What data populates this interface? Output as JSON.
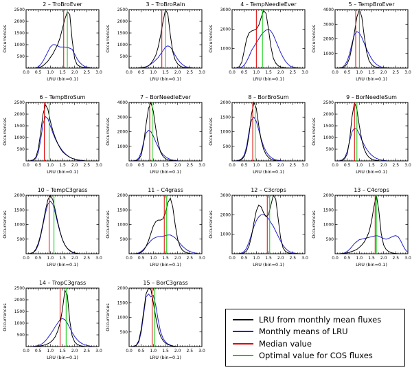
{
  "figure": {
    "background": "#ffffff"
  },
  "colors": {
    "frame": "#000000",
    "black_series": "#000000",
    "blue_series": "#2222cc",
    "median_line": "#dd0000",
    "optimal_line": "#00cc00"
  },
  "axis": {
    "xlabel": "LRU (bin=0.1)",
    "ylabel": "Occurrences",
    "xlim": [
      0.0,
      3.0
    ],
    "xticks": [
      0.0,
      0.5,
      1.0,
      1.5,
      2.0,
      2.5,
      3.0
    ]
  },
  "legend": {
    "items": [
      {
        "label": "LRU from monthly mean fluxes",
        "color": "#000000"
      },
      {
        "label": "Monthly means of LRU",
        "color": "#2222cc"
      },
      {
        "label": "Median value",
        "color": "#dd0000"
      },
      {
        "label": "Optimal value for COS fluxes",
        "color": "#00cc00"
      }
    ]
  },
  "chart_data": {
    "type": "line",
    "x_start": 0.0,
    "x_step": 0.1,
    "xlabel": "LRU (bin=0.1)",
    "ylabel": "Occurrences",
    "panels": [
      {
        "title": "2 – TroBroEver",
        "ylim": 2500,
        "yticks": [
          500,
          1000,
          1500,
          2000,
          2500
        ],
        "median_x": 1.55,
        "optimal_x": 1.7,
        "black": [
          0,
          0,
          0,
          0,
          0,
          10,
          50,
          100,
          200,
          300,
          450,
          600,
          800,
          1000,
          1300,
          1700,
          2100,
          2400,
          2300,
          1200,
          400,
          150,
          80,
          40,
          20,
          10,
          0,
          0,
          0,
          0,
          0
        ],
        "blue": [
          0,
          0,
          0,
          0,
          10,
          50,
          150,
          300,
          500,
          700,
          900,
          1000,
          1000,
          950,
          900,
          900,
          900,
          880,
          850,
          800,
          600,
          400,
          250,
          150,
          80,
          40,
          20,
          0,
          0,
          0,
          0
        ]
      },
      {
        "title": "3 – TroBroRaIn",
        "ylim": 2500,
        "yticks": [
          500,
          1000,
          1500,
          2000,
          2500
        ],
        "median_x": 1.35,
        "optimal_x": 1.5,
        "black": [
          0,
          0,
          0,
          0,
          0,
          0,
          20,
          50,
          100,
          200,
          350,
          550,
          900,
          1400,
          2000,
          2500,
          2300,
          1400,
          700,
          350,
          180,
          90,
          40,
          20,
          10,
          0,
          0,
          0,
          0,
          0,
          0
        ],
        "blue": [
          0,
          0,
          0,
          0,
          10,
          20,
          30,
          60,
          100,
          170,
          250,
          350,
          450,
          600,
          750,
          900,
          950,
          900,
          750,
          550,
          380,
          250,
          150,
          80,
          40,
          20,
          10,
          0,
          0,
          0,
          0
        ]
      },
      {
        "title": "4 – TempNeedleEver",
        "ylim": 3000,
        "yticks": [
          1000,
          2000,
          3000
        ],
        "median_x": 1.0,
        "optimal_x": 1.25,
        "black": [
          0,
          0,
          10,
          80,
          300,
          900,
          1500,
          1800,
          1900,
          1950,
          2000,
          2200,
          2600,
          2950,
          2800,
          2000,
          1100,
          500,
          250,
          120,
          60,
          30,
          10,
          0,
          0,
          0,
          0,
          0,
          0,
          0,
          0
        ],
        "blue": [
          0,
          0,
          0,
          10,
          50,
          150,
          350,
          600,
          900,
          1100,
          1300,
          1500,
          1700,
          1850,
          1950,
          2000,
          1900,
          1700,
          1400,
          1100,
          800,
          550,
          350,
          200,
          100,
          50,
          20,
          10,
          0,
          0,
          0
        ]
      },
      {
        "title": "5 – TempBroEver",
        "ylim": 4000,
        "yticks": [
          1000,
          2000,
          3000,
          4000
        ],
        "median_x": 0.85,
        "optimal_x": 1.0,
        "black": [
          0,
          0,
          0,
          20,
          100,
          300,
          700,
          1500,
          2500,
          3500,
          4000,
          3500,
          2200,
          1100,
          500,
          250,
          120,
          60,
          30,
          10,
          0,
          0,
          0,
          0,
          0,
          0,
          0,
          0,
          0,
          0,
          0
        ],
        "blue": [
          0,
          0,
          10,
          50,
          200,
          500,
          1000,
          1700,
          2300,
          2500,
          2400,
          2100,
          1700,
          1300,
          950,
          650,
          420,
          260,
          150,
          80,
          40,
          20,
          10,
          0,
          0,
          0,
          0,
          0,
          0,
          0,
          0
        ]
      },
      {
        "title": "6 – TempBroSum",
        "ylim": 2500,
        "yticks": [
          500,
          1000,
          1500,
          2000,
          2500
        ],
        "median_x": 0.75,
        "optimal_x": 0.95,
        "black": [
          0,
          0,
          10,
          50,
          150,
          500,
          1200,
          2000,
          2400,
          2200,
          1700,
          1300,
          1000,
          750,
          550,
          400,
          300,
          220,
          160,
          110,
          80,
          50,
          30,
          20,
          10,
          0,
          0,
          0,
          0,
          0,
          0
        ],
        "blue": [
          0,
          0,
          10,
          30,
          100,
          350,
          900,
          1600,
          1900,
          1800,
          1500,
          1200,
          950,
          750,
          580,
          430,
          320,
          230,
          160,
          110,
          70,
          40,
          20,
          10,
          0,
          0,
          0,
          0,
          0,
          0,
          0
        ]
      },
      {
        "title": "7 – BorNeedleEver",
        "ylim": 4000,
        "yticks": [
          1000,
          2000,
          3000,
          4000
        ],
        "median_x": 0.85,
        "optimal_x": 0.95,
        "black": [
          0,
          0,
          0,
          20,
          100,
          400,
          1200,
          2500,
          3600,
          4000,
          3400,
          2200,
          1200,
          600,
          300,
          150,
          80,
          40,
          20,
          10,
          0,
          0,
          0,
          0,
          0,
          0,
          0,
          0,
          0,
          0,
          0
        ],
        "blue": [
          0,
          0,
          10,
          50,
          200,
          600,
          1300,
          1900,
          2100,
          2000,
          1700,
          1300,
          950,
          650,
          430,
          280,
          180,
          110,
          60,
          30,
          10,
          0,
          0,
          0,
          0,
          0,
          0,
          0,
          0,
          0,
          0
        ]
      },
      {
        "title": "8 – BorBroSum",
        "ylim": 2000,
        "yticks": [
          500,
          1000,
          1500,
          2000
        ],
        "median_x": 0.85,
        "optimal_x": 0.95,
        "black": [
          0,
          0,
          0,
          10,
          50,
          150,
          400,
          900,
          1600,
          2000,
          1800,
          1200,
          700,
          400,
          220,
          120,
          60,
          30,
          10,
          0,
          0,
          0,
          0,
          0,
          0,
          0,
          0,
          0,
          0,
          0,
          0
        ],
        "blue": [
          0,
          0,
          10,
          30,
          80,
          200,
          500,
          1000,
          1400,
          1500,
          1350,
          1050,
          750,
          500,
          320,
          200,
          120,
          70,
          40,
          20,
          10,
          0,
          0,
          0,
          0,
          0,
          0,
          0,
          0,
          0,
          0
        ]
      },
      {
        "title": "9 – BorNeedleSum",
        "ylim": 2500,
        "yticks": [
          500,
          1000,
          1500,
          2000,
          2500
        ],
        "median_x": 0.8,
        "optimal_x": 0.9,
        "black": [
          0,
          0,
          0,
          20,
          100,
          300,
          900,
          1900,
          2500,
          2200,
          1500,
          900,
          500,
          280,
          150,
          80,
          40,
          20,
          10,
          0,
          0,
          0,
          0,
          0,
          0,
          0,
          0,
          0,
          0,
          0,
          0
        ],
        "blue": [
          0,
          0,
          10,
          50,
          150,
          400,
          850,
          1250,
          1400,
          1350,
          1150,
          900,
          680,
          500,
          360,
          250,
          170,
          110,
          70,
          40,
          20,
          10,
          0,
          0,
          0,
          0,
          0,
          0,
          0,
          0,
          0
        ]
      },
      {
        "title": "10 – TempC3grass",
        "ylim": 2000,
        "yticks": [
          500,
          1000,
          1500,
          2000
        ],
        "median_x": 0.95,
        "optimal_x": 1.15,
        "black": [
          0,
          0,
          10,
          50,
          150,
          350,
          650,
          1050,
          1500,
          1850,
          2000,
          1850,
          1500,
          1100,
          750,
          480,
          300,
          180,
          110,
          60,
          30,
          10,
          0,
          0,
          0,
          0,
          0,
          0,
          0,
          0,
          0
        ],
        "blue": [
          0,
          0,
          10,
          40,
          120,
          300,
          600,
          1000,
          1400,
          1700,
          1800,
          1700,
          1400,
          1050,
          730,
          480,
          300,
          180,
          100,
          50,
          20,
          10,
          0,
          0,
          0,
          0,
          0,
          0,
          0,
          0,
          0
        ]
      },
      {
        "title": "11 – C4grass",
        "ylim": 2000,
        "yticks": [
          500,
          1000,
          1500,
          2000
        ],
        "median_x": 1.45,
        "optimal_x": 1.55,
        "black": [
          0,
          0,
          0,
          0,
          10,
          50,
          120,
          250,
          450,
          700,
          950,
          1100,
          1150,
          1150,
          1200,
          1400,
          1750,
          1900,
          1600,
          1000,
          500,
          250,
          120,
          60,
          30,
          10,
          0,
          0,
          0,
          0,
          0
        ],
        "blue": [
          0,
          0,
          0,
          10,
          30,
          80,
          150,
          250,
          350,
          450,
          520,
          560,
          580,
          590,
          600,
          620,
          640,
          640,
          600,
          540,
          450,
          350,
          260,
          180,
          120,
          80,
          50,
          30,
          10,
          0,
          0
        ]
      },
      {
        "title": "12 – C3crops",
        "ylim": 3000,
        "yticks": [
          1000,
          2000,
          3000
        ],
        "median_x": 1.45,
        "optimal_x": 1.55,
        "black": [
          0,
          0,
          0,
          0,
          10,
          50,
          150,
          400,
          900,
          1600,
          2200,
          2500,
          2400,
          2100,
          1900,
          2000,
          2500,
          3000,
          2800,
          1800,
          800,
          300,
          120,
          50,
          20,
          10,
          0,
          0,
          0,
          0,
          0
        ],
        "blue": [
          0,
          0,
          0,
          10,
          40,
          120,
          300,
          600,
          1000,
          1400,
          1700,
          1900,
          2000,
          2000,
          1950,
          1800,
          1600,
          1400,
          1150,
          900,
          650,
          430,
          270,
          160,
          90,
          50,
          20,
          10,
          0,
          0,
          0
        ]
      },
      {
        "title": "13 – C4crops",
        "ylim": 2000,
        "yticks": [
          500,
          1000,
          1500,
          2000
        ],
        "median_x": 1.65,
        "optimal_x": 1.7,
        "black": [
          0,
          0,
          0,
          10,
          20,
          30,
          50,
          80,
          110,
          150,
          220,
          300,
          400,
          550,
          750,
          1100,
          1600,
          2000,
          1500,
          700,
          300,
          150,
          80,
          40,
          20,
          10,
          0,
          0,
          0,
          0,
          0
        ],
        "blue": [
          0,
          0,
          0,
          10,
          30,
          80,
          150,
          250,
          350,
          420,
          480,
          500,
          520,
          540,
          560,
          580,
          600,
          620,
          600,
          560,
          520,
          500,
          520,
          560,
          600,
          620,
          580,
          450,
          280,
          130,
          40
        ]
      },
      {
        "title": "14 – TropC3grass",
        "ylim": 2500,
        "yticks": [
          500,
          1000,
          1500,
          2000,
          2500
        ],
        "median_x": 1.4,
        "optimal_x": 1.65,
        "black": [
          0,
          0,
          0,
          0,
          10,
          20,
          30,
          50,
          80,
          120,
          180,
          280,
          420,
          650,
          1000,
          1600,
          2400,
          2200,
          1100,
          450,
          200,
          100,
          50,
          20,
          10,
          0,
          0,
          0,
          0,
          0,
          0
        ],
        "blue": [
          0,
          0,
          0,
          10,
          20,
          50,
          80,
          150,
          250,
          380,
          520,
          680,
          850,
          1000,
          1150,
          1200,
          1150,
          1000,
          800,
          600,
          430,
          300,
          200,
          130,
          80,
          50,
          30,
          10,
          0,
          0,
          0
        ]
      },
      {
        "title": "15 – BorC3grass",
        "ylim": 2000,
        "yticks": [
          500,
          1000,
          1500,
          2000
        ],
        "median_x": 0.95,
        "optimal_x": 1.05,
        "black": [
          0,
          0,
          10,
          50,
          200,
          600,
          1200,
          1800,
          2000,
          1950,
          1500,
          1000,
          600,
          350,
          200,
          120,
          70,
          40,
          20,
          10,
          0,
          0,
          0,
          0,
          0,
          0,
          0,
          0,
          0,
          0,
          0
        ],
        "blue": [
          0,
          0,
          10,
          40,
          150,
          500,
          1100,
          1700,
          1800,
          1700,
          1750,
          1400,
          900,
          500,
          280,
          160,
          90,
          50,
          20,
          10,
          0,
          0,
          0,
          0,
          0,
          0,
          0,
          0,
          0,
          0,
          0
        ]
      }
    ]
  }
}
